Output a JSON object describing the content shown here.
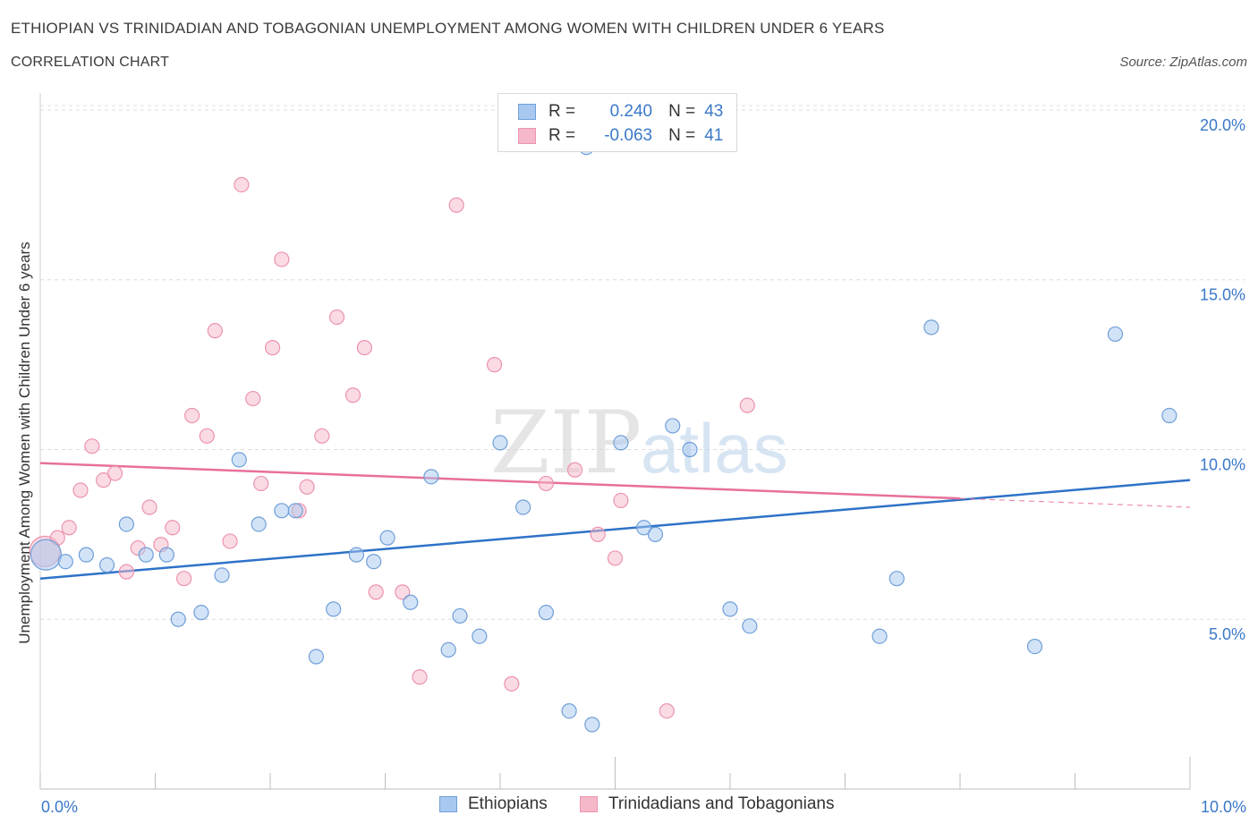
{
  "header": {
    "title": "ETHIOPIAN VS TRINIDADIAN AND TOBAGONIAN UNEMPLOYMENT AMONG WOMEN WITH CHILDREN UNDER 6 YEARS",
    "subtitle": "CORRELATION CHART",
    "source": "Source: ZipAtlas.com"
  },
  "stats_legend": {
    "r_label": "R =",
    "n_label": "N =",
    "rows": [
      {
        "series": "Ethiopians",
        "r": "0.240",
        "n": "43",
        "color": "#a8c8f0"
      },
      {
        "series": "Trinidadians and Tobagonians",
        "r": "-0.063",
        "n": "41",
        "color": "#f5b8c8"
      }
    ]
  },
  "watermark": {
    "zip": "ZIP",
    "atlas": "atlas"
  },
  "chart_data": {
    "type": "scatter",
    "title": "ETHIOPIAN VS TRINIDADIAN AND TOBAGONIAN UNEMPLOYMENT AMONG WOMEN WITH CHILDREN UNDER 6 YEARS",
    "subtitle": "CORRELATION CHART",
    "xlabel": "",
    "ylabel": "Unemployment Among Women with Children Under 6 years",
    "xlim": [
      0,
      10
    ],
    "ylim": [
      0,
      20.5
    ],
    "x_tick_labels": [
      "0.0%",
      "10.0%"
    ],
    "y_tick_values": [
      5,
      10,
      15,
      20
    ],
    "y_tick_labels": [
      "5.0%",
      "10.0%",
      "15.0%",
      "20.0%"
    ],
    "grid": true,
    "legend_position": "bottom",
    "series": [
      {
        "name": "Ethiopians",
        "color": "#a8c8f0",
        "stroke": "#6f9fd8",
        "line_color": "#2e72c8",
        "trend": {
          "x0": 0,
          "y0": 6.2,
          "x1": 10,
          "y1": 9.1,
          "dashed_from": null
        },
        "points": [
          {
            "x": 0.05,
            "y": 6.9,
            "big": true
          },
          {
            "x": 0.22,
            "y": 6.7
          },
          {
            "x": 0.4,
            "y": 6.9
          },
          {
            "x": 0.58,
            "y": 6.6
          },
          {
            "x": 0.75,
            "y": 7.8
          },
          {
            "x": 0.92,
            "y": 6.9
          },
          {
            "x": 1.1,
            "y": 6.9
          },
          {
            "x": 1.2,
            "y": 5.0
          },
          {
            "x": 1.4,
            "y": 5.2
          },
          {
            "x": 1.58,
            "y": 6.3
          },
          {
            "x": 1.73,
            "y": 9.7
          },
          {
            "x": 1.9,
            "y": 7.8
          },
          {
            "x": 2.1,
            "y": 8.2
          },
          {
            "x": 2.22,
            "y": 8.2
          },
          {
            "x": 2.4,
            "y": 3.9
          },
          {
            "x": 2.55,
            "y": 5.3
          },
          {
            "x": 2.75,
            "y": 6.9
          },
          {
            "x": 2.9,
            "y": 6.7
          },
          {
            "x": 3.02,
            "y": 7.4
          },
          {
            "x": 3.22,
            "y": 5.5
          },
          {
            "x": 3.4,
            "y": 9.2
          },
          {
            "x": 3.55,
            "y": 4.1
          },
          {
            "x": 3.65,
            "y": 5.1
          },
          {
            "x": 3.82,
            "y": 4.5
          },
          {
            "x": 4.0,
            "y": 10.2
          },
          {
            "x": 4.2,
            "y": 8.3
          },
          {
            "x": 4.4,
            "y": 5.2
          },
          {
            "x": 4.6,
            "y": 2.3
          },
          {
            "x": 4.75,
            "y": 18.9
          },
          {
            "x": 4.8,
            "y": 1.9
          },
          {
            "x": 5.05,
            "y": 10.2
          },
          {
            "x": 5.25,
            "y": 7.7
          },
          {
            "x": 5.35,
            "y": 7.5
          },
          {
            "x": 5.5,
            "y": 10.7
          },
          {
            "x": 5.65,
            "y": 10.0
          },
          {
            "x": 6.0,
            "y": 5.3
          },
          {
            "x": 6.17,
            "y": 4.8
          },
          {
            "x": 7.3,
            "y": 4.5
          },
          {
            "x": 7.45,
            "y": 6.2
          },
          {
            "x": 7.75,
            "y": 13.6
          },
          {
            "x": 8.65,
            "y": 4.2
          },
          {
            "x": 9.35,
            "y": 13.4
          },
          {
            "x": 9.82,
            "y": 11.0
          }
        ]
      },
      {
        "name": "Trinidadians and Tobagonians",
        "color": "#f5b8c8",
        "stroke": "#ec93ad",
        "line_color": "#e8709a",
        "trend": {
          "x0": 0,
          "y0": 9.6,
          "x1": 10,
          "y1": 8.3,
          "dashed_from": 8.0
        },
        "points": [
          {
            "x": 0.04,
            "y": 7.0,
            "big": true
          },
          {
            "x": 0.15,
            "y": 7.4
          },
          {
            "x": 0.25,
            "y": 7.7
          },
          {
            "x": 0.35,
            "y": 8.8
          },
          {
            "x": 0.45,
            "y": 10.1
          },
          {
            "x": 0.55,
            "y": 9.1
          },
          {
            "x": 0.65,
            "y": 9.3
          },
          {
            "x": 0.75,
            "y": 6.4
          },
          {
            "x": 0.85,
            "y": 7.1
          },
          {
            "x": 0.95,
            "y": 8.3
          },
          {
            "x": 1.05,
            "y": 7.2
          },
          {
            "x": 1.15,
            "y": 7.7
          },
          {
            "x": 1.25,
            "y": 6.2
          },
          {
            "x": 1.32,
            "y": 11.0
          },
          {
            "x": 1.45,
            "y": 10.4
          },
          {
            "x": 1.52,
            "y": 13.5
          },
          {
            "x": 1.65,
            "y": 7.3
          },
          {
            "x": 1.75,
            "y": 17.8
          },
          {
            "x": 1.85,
            "y": 11.5
          },
          {
            "x": 1.92,
            "y": 9.0
          },
          {
            "x": 2.02,
            "y": 13.0
          },
          {
            "x": 2.1,
            "y": 15.6
          },
          {
            "x": 2.25,
            "y": 8.2
          },
          {
            "x": 2.32,
            "y": 8.9
          },
          {
            "x": 2.45,
            "y": 10.4
          },
          {
            "x": 2.58,
            "y": 13.9
          },
          {
            "x": 2.72,
            "y": 11.6
          },
          {
            "x": 2.82,
            "y": 13.0
          },
          {
            "x": 2.92,
            "y": 5.8
          },
          {
            "x": 3.15,
            "y": 5.8
          },
          {
            "x": 3.3,
            "y": 3.3
          },
          {
            "x": 3.62,
            "y": 17.2
          },
          {
            "x": 3.95,
            "y": 12.5
          },
          {
            "x": 4.1,
            "y": 3.1
          },
          {
            "x": 4.4,
            "y": 9.0
          },
          {
            "x": 4.65,
            "y": 9.4
          },
          {
            "x": 4.85,
            "y": 7.5
          },
          {
            "x": 5.0,
            "y": 6.8
          },
          {
            "x": 5.05,
            "y": 8.5
          },
          {
            "x": 5.45,
            "y": 2.3
          },
          {
            "x": 6.15,
            "y": 11.3
          }
        ]
      }
    ]
  }
}
